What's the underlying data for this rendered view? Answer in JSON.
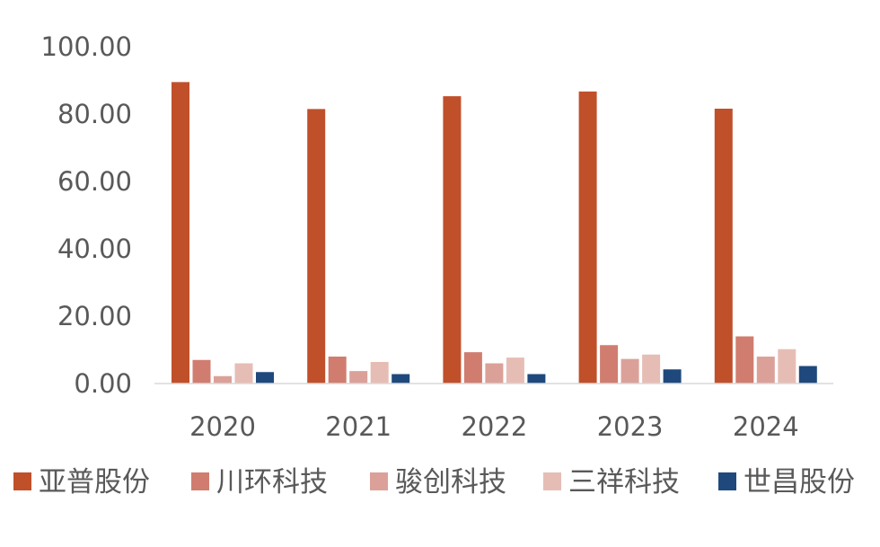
{
  "chart_data": {
    "type": "bar",
    "title": "",
    "xlabel": "",
    "ylabel": "",
    "categories": [
      "2020",
      "2021",
      "2022",
      "2023",
      "2024"
    ],
    "ylim": [
      0,
      100
    ],
    "yticks": [
      "0.00",
      "20.00",
      "40.00",
      "60.00",
      "80.00",
      "100.00"
    ],
    "grid": false,
    "legend_position": "bottom",
    "series": [
      {
        "name": "亚普股份",
        "color": "#C0502A",
        "values": [
          89.5,
          81.5,
          85.3,
          86.7,
          81.6
        ]
      },
      {
        "name": "川环科技",
        "color": "#D07D70",
        "values": [
          7.0,
          8.0,
          9.3,
          11.4,
          14.0
        ]
      },
      {
        "name": "骏创科技",
        "color": "#DBA199",
        "values": [
          2.2,
          3.7,
          6.0,
          7.3,
          8.0
        ]
      },
      {
        "name": "三祥科技",
        "color": "#E6BDB5",
        "values": [
          6.0,
          6.4,
          7.7,
          8.6,
          10.2
        ]
      },
      {
        "name": "世昌股份",
        "color": "#1F497D",
        "values": [
          3.4,
          2.8,
          2.8,
          4.2,
          5.2
        ]
      }
    ]
  }
}
